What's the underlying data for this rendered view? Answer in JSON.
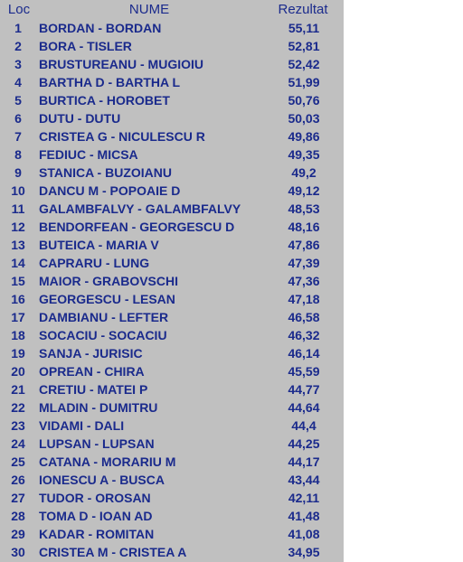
{
  "header": {
    "loc": "Loc",
    "nume": "NUME",
    "rezultat": "Rezultat"
  },
  "rows": [
    {
      "loc": "1",
      "nume": "BORDAN - BORDAN",
      "rezultat": "55,11"
    },
    {
      "loc": "2",
      "nume": "BORA - TISLER",
      "rezultat": "52,81"
    },
    {
      "loc": "3",
      "nume": "BRUSTUREANU - MUGIOIU",
      "rezultat": "52,42"
    },
    {
      "loc": "4",
      "nume": "BARTHA D - BARTHA L",
      "rezultat": "51,99"
    },
    {
      "loc": "5",
      "nume": "BURTICA - HOROBET",
      "rezultat": "50,76"
    },
    {
      "loc": "6",
      "nume": "DUTU - DUTU",
      "rezultat": "50,03"
    },
    {
      "loc": "7",
      "nume": "CRISTEA G - NICULESCU R",
      "rezultat": "49,86"
    },
    {
      "loc": "8",
      "nume": "FEDIUC - MICSA",
      "rezultat": "49,35"
    },
    {
      "loc": "9",
      "nume": "STANICA - BUZOIANU",
      "rezultat": "49,2"
    },
    {
      "loc": "10",
      "nume": "DANCU M - POPOAIE D",
      "rezultat": "49,12"
    },
    {
      "loc": "11",
      "nume": "GALAMBFALVY - GALAMBFALVY",
      "rezultat": "48,53"
    },
    {
      "loc": "12",
      "nume": "BENDORFEAN - GEORGESCU D",
      "rezultat": "48,16"
    },
    {
      "loc": "13",
      "nume": "BUTEICA - MARIA V",
      "rezultat": "47,86"
    },
    {
      "loc": "14",
      "nume": "CAPRARU - LUNG",
      "rezultat": "47,39"
    },
    {
      "loc": "15",
      "nume": "MAIOR - GRABOVSCHI",
      "rezultat": "47,36"
    },
    {
      "loc": "16",
      "nume": "GEORGESCU - LESAN",
      "rezultat": "47,18"
    },
    {
      "loc": "17",
      "nume": "DAMBIANU - LEFTER",
      "rezultat": "46,58"
    },
    {
      "loc": "18",
      "nume": "SOCACIU - SOCACIU",
      "rezultat": "46,32"
    },
    {
      "loc": "19",
      "nume": "SANJA - JURISIC",
      "rezultat": "46,14"
    },
    {
      "loc": "20",
      "nume": "OPREAN - CHIRA",
      "rezultat": "45,59"
    },
    {
      "loc": "21",
      "nume": "CRETIU - MATEI P",
      "rezultat": "44,77"
    },
    {
      "loc": "22",
      "nume": "MLADIN - DUMITRU",
      "rezultat": "44,64"
    },
    {
      "loc": "23",
      "nume": "VIDAMI - DALI",
      "rezultat": "44,4"
    },
    {
      "loc": "24",
      "nume": "LUPSAN - LUPSAN",
      "rezultat": "44,25"
    },
    {
      "loc": "25",
      "nume": "CATANA - MORARIU M",
      "rezultat": "44,17"
    },
    {
      "loc": "26",
      "nume": "IONESCU A - BUSCA",
      "rezultat": "43,44"
    },
    {
      "loc": "27",
      "nume": "TUDOR - OROSAN",
      "rezultat": "42,11"
    },
    {
      "loc": "28",
      "nume": "TOMA D - IOAN AD",
      "rezultat": "41,48"
    },
    {
      "loc": "29",
      "nume": "KADAR - ROMITAN",
      "rezultat": "41,08"
    },
    {
      "loc": "30",
      "nume": "CRISTEA M - CRISTEA A",
      "rezultat": "34,95"
    }
  ]
}
